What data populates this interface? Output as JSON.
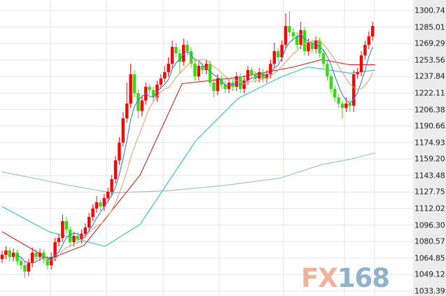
{
  "chart_data": {
    "type": "candlestick",
    "title": "",
    "xlabel": "",
    "ylabel": "",
    "ylim": [
      1033.39,
      1300.74
    ],
    "y_ticks": [
      "1300.74",
      "1285.01",
      "1269.29",
      "1253.56",
      "1237.84",
      "1222.11",
      "1206.38",
      "1190.66",
      "1174.93",
      "1159.20",
      "1143.48",
      "1127.75",
      "1112.02",
      "1096.30",
      "1080.57",
      "1064.85",
      "1049.12",
      "1033.39"
    ],
    "grid": true,
    "colors": {
      "up": "#ff0000",
      "down": "#33dd11",
      "ma_short": "#3a7fd5",
      "ma_mid": "#f0a070",
      "ma_red": "#d42020",
      "ma_cyan": "#30c0c8",
      "ma_long": "#a0b8d0"
    },
    "open": [
      1064,
      1068,
      1072,
      1066,
      1070,
      1062,
      1058,
      1052,
      1060,
      1070,
      1066,
      1070,
      1064,
      1058,
      1066,
      1080,
      1084,
      1100,
      1092,
      1080,
      1086,
      1083,
      1088,
      1094,
      1104,
      1112,
      1118,
      1114,
      1122,
      1128,
      1140,
      1158,
      1175,
      1198,
      1212,
      1240,
      1222,
      1205,
      1215,
      1228,
      1225,
      1218,
      1230,
      1236,
      1242,
      1250,
      1266,
      1260,
      1252,
      1268,
      1262,
      1250,
      1238,
      1248,
      1244,
      1250,
      1232,
      1224,
      1236,
      1230,
      1226,
      1232,
      1228,
      1238,
      1226,
      1234,
      1244,
      1240,
      1236,
      1242,
      1236,
      1240,
      1250,
      1262,
      1256,
      1268,
      1286,
      1280,
      1276,
      1268,
      1282,
      1262,
      1270,
      1264,
      1272,
      1260,
      1250,
      1238,
      1226,
      1218,
      1212,
      1208,
      1212,
      1210,
      1240,
      1242,
      1258,
      1268,
      1276
    ],
    "high": [
      1072,
      1076,
      1075,
      1074,
      1073,
      1066,
      1062,
      1064,
      1075,
      1073,
      1074,
      1073,
      1067,
      1070,
      1084,
      1088,
      1106,
      1104,
      1095,
      1090,
      1089,
      1092,
      1098,
      1108,
      1116,
      1124,
      1121,
      1126,
      1132,
      1144,
      1162,
      1180,
      1204,
      1232,
      1250,
      1244,
      1226,
      1220,
      1232,
      1231,
      1228,
      1234,
      1240,
      1248,
      1256,
      1272,
      1270,
      1264,
      1274,
      1272,
      1266,
      1254,
      1252,
      1251,
      1254,
      1253,
      1236,
      1240,
      1239,
      1234,
      1236,
      1235,
      1242,
      1241,
      1238,
      1248,
      1247,
      1243,
      1246,
      1245,
      1244,
      1254,
      1270,
      1265,
      1272,
      1298,
      1300,
      1284,
      1280,
      1290,
      1285,
      1274,
      1273,
      1276,
      1275,
      1263,
      1253,
      1241,
      1229,
      1221,
      1215,
      1218,
      1216,
      1244,
      1246,
      1262,
      1272,
      1281,
      1290
    ],
    "low": [
      1060,
      1064,
      1062,
      1062,
      1058,
      1054,
      1046,
      1048,
      1056,
      1062,
      1062,
      1060,
      1054,
      1054,
      1062,
      1076,
      1080,
      1088,
      1076,
      1076,
      1079,
      1079,
      1084,
      1090,
      1100,
      1108,
      1110,
      1110,
      1118,
      1124,
      1136,
      1154,
      1171,
      1194,
      1208,
      1218,
      1198,
      1200,
      1211,
      1221,
      1214,
      1214,
      1226,
      1232,
      1238,
      1246,
      1256,
      1240,
      1248,
      1258,
      1246,
      1234,
      1234,
      1240,
      1240,
      1228,
      1218,
      1220,
      1226,
      1222,
      1222,
      1224,
      1224,
      1222,
      1222,
      1230,
      1236,
      1232,
      1232,
      1232,
      1232,
      1236,
      1246,
      1252,
      1252,
      1264,
      1276,
      1272,
      1264,
      1264,
      1258,
      1258,
      1260,
      1260,
      1256,
      1246,
      1234,
      1222,
      1214,
      1208,
      1198,
      1204,
      1204,
      1204,
      1236,
      1238,
      1254,
      1264,
      1272
    ],
    "close": [
      1068,
      1072,
      1066,
      1070,
      1062,
      1058,
      1052,
      1060,
      1070,
      1066,
      1070,
      1064,
      1058,
      1066,
      1080,
      1084,
      1100,
      1092,
      1080,
      1086,
      1083,
      1088,
      1094,
      1104,
      1112,
      1118,
      1114,
      1122,
      1128,
      1140,
      1158,
      1175,
      1198,
      1212,
      1240,
      1222,
      1205,
      1215,
      1228,
      1225,
      1218,
      1230,
      1236,
      1242,
      1250,
      1266,
      1260,
      1252,
      1268,
      1262,
      1250,
      1238,
      1248,
      1244,
      1250,
      1232,
      1224,
      1236,
      1230,
      1226,
      1232,
      1228,
      1238,
      1226,
      1234,
      1244,
      1240,
      1236,
      1242,
      1236,
      1240,
      1250,
      1262,
      1256,
      1268,
      1286,
      1280,
      1276,
      1268,
      1282,
      1262,
      1270,
      1264,
      1272,
      1260,
      1250,
      1238,
      1226,
      1218,
      1212,
      1208,
      1212,
      1210,
      1240,
      1242,
      1258,
      1268,
      1276,
      1286
    ],
    "moving_averages": {
      "short_periods": [
        5,
        10
      ],
      "red": [
        [
          0,
          1090
        ],
        [
          12.4,
          1064
        ],
        [
          21.7,
          1077
        ],
        [
          36.5,
          1144
        ],
        [
          47.6,
          1231
        ],
        [
          62.4,
          1237
        ],
        [
          77.2,
          1247
        ],
        [
          84.6,
          1254
        ],
        [
          92,
          1249
        ],
        [
          98.7,
          1249
        ]
      ],
      "cyan": [
        [
          0,
          1114
        ],
        [
          12.4,
          1090
        ],
        [
          27.2,
          1076
        ],
        [
          36.5,
          1097
        ],
        [
          51.3,
          1177
        ],
        [
          62.4,
          1217
        ],
        [
          73.5,
          1237
        ],
        [
          80.9,
          1247
        ],
        [
          86.5,
          1244
        ],
        [
          92,
          1241
        ],
        [
          98.7,
          1244
        ]
      ],
      "long": [
        [
          0,
          1147
        ],
        [
          18,
          1134
        ],
        [
          29.1,
          1127
        ],
        [
          43.9,
          1129
        ],
        [
          58.7,
          1134
        ],
        [
          73.5,
          1141
        ],
        [
          84.6,
          1154
        ],
        [
          92,
          1159
        ],
        [
          98.7,
          1165
        ]
      ]
    }
  },
  "logo": {
    "fx": "FX",
    "num": "168"
  }
}
